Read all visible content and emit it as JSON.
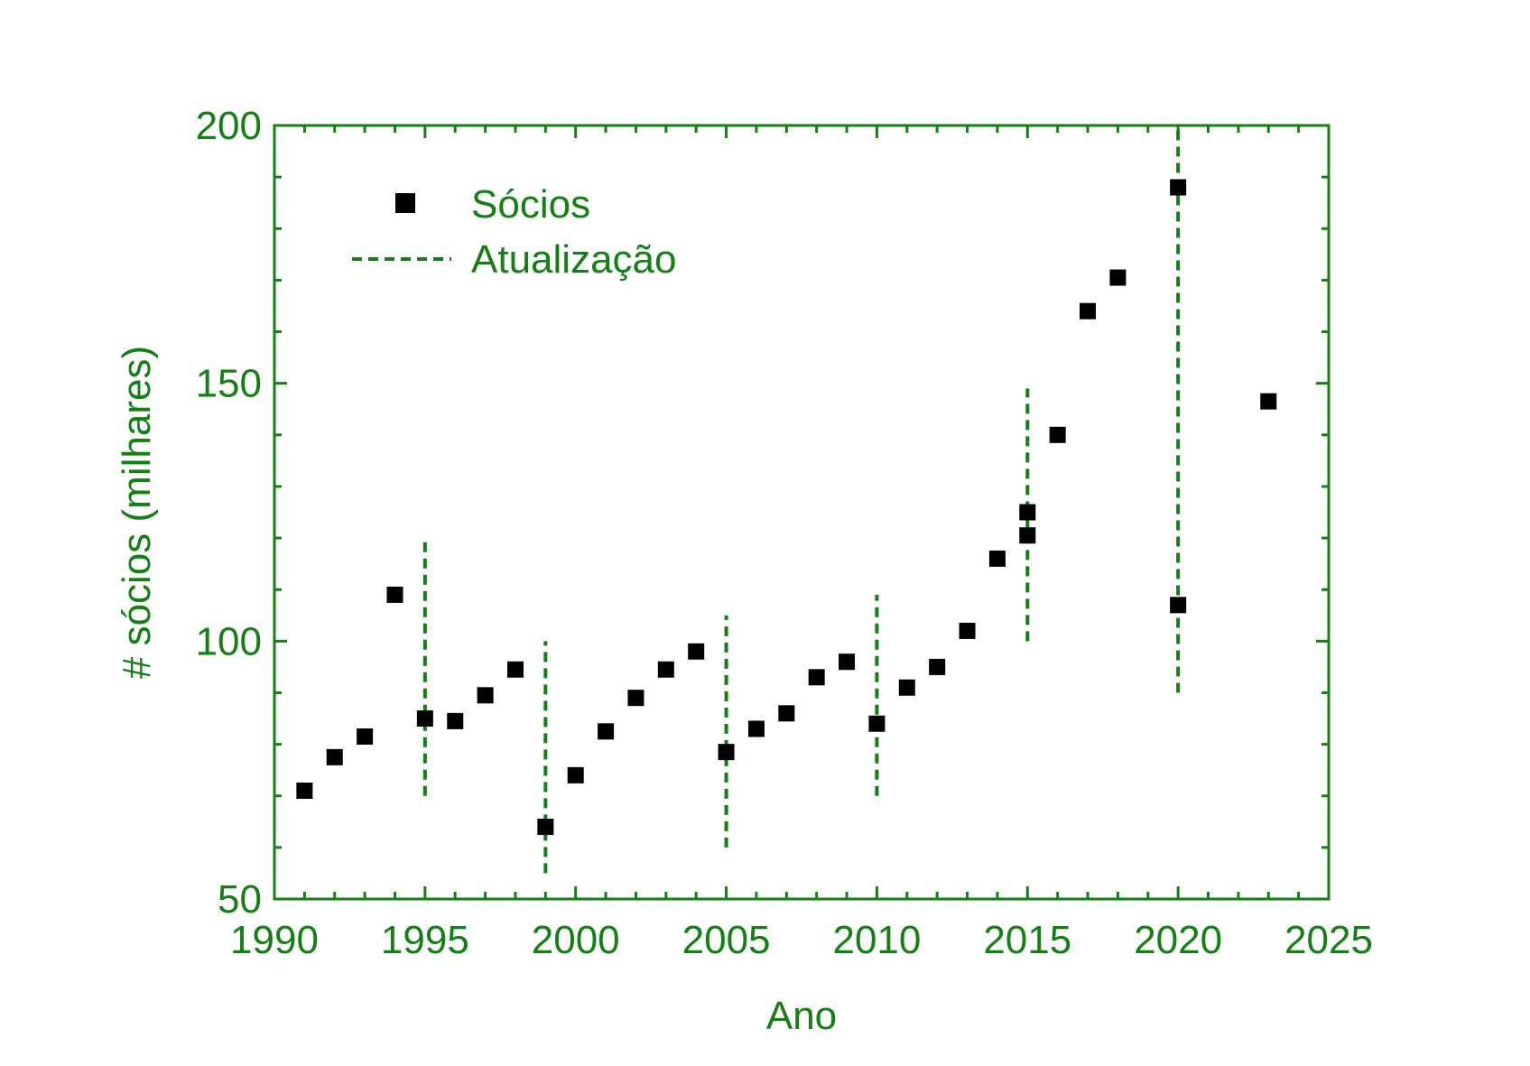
{
  "chart_data": {
    "type": "scatter",
    "title": "",
    "xlabel": "Ano",
    "ylabel": "# sócios (milhares)",
    "xlim": [
      1990,
      2025
    ],
    "ylim": [
      50,
      200
    ],
    "x_ticks": [
      1990,
      1995,
      2000,
      2005,
      2010,
      2015,
      2020,
      2025
    ],
    "y_ticks": [
      50,
      100,
      150,
      200
    ],
    "x_minor_step": 1,
    "y_minor_step": 10,
    "grid": false,
    "legend_position": "top-left",
    "colors": {
      "axis": "#138013",
      "marker": "#000000",
      "update_line": "#138013"
    },
    "series": [
      {
        "name": "Sócios",
        "kind": "scatter",
        "marker": "square",
        "points": [
          {
            "x": 1991,
            "y": 71
          },
          {
            "x": 1992,
            "y": 77.5
          },
          {
            "x": 1993,
            "y": 81.5
          },
          {
            "x": 1994,
            "y": 109
          },
          {
            "x": 1995,
            "y": 85
          },
          {
            "x": 1996,
            "y": 84.5
          },
          {
            "x": 1997,
            "y": 89.5
          },
          {
            "x": 1998,
            "y": 94.5
          },
          {
            "x": 1999,
            "y": 64
          },
          {
            "x": 2000,
            "y": 74
          },
          {
            "x": 2001,
            "y": 82.5
          },
          {
            "x": 2002,
            "y": 89
          },
          {
            "x": 2003,
            "y": 94.5
          },
          {
            "x": 2004,
            "y": 98
          },
          {
            "x": 2005,
            "y": 78.5
          },
          {
            "x": 2006,
            "y": 83
          },
          {
            "x": 2007,
            "y": 86
          },
          {
            "x": 2008,
            "y": 93
          },
          {
            "x": 2009,
            "y": 96
          },
          {
            "x": 2010,
            "y": 84
          },
          {
            "x": 2011,
            "y": 91
          },
          {
            "x": 2012,
            "y": 95
          },
          {
            "x": 2013,
            "y": 102
          },
          {
            "x": 2014,
            "y": 116
          },
          {
            "x": 2015,
            "y": 120.5
          },
          {
            "x": 2015,
            "y": 125
          },
          {
            "x": 2016,
            "y": 140
          },
          {
            "x": 2017,
            "y": 164
          },
          {
            "x": 2018,
            "y": 170.5
          },
          {
            "x": 2020,
            "y": 107
          },
          {
            "x": 2020,
            "y": 188
          },
          {
            "x": 2023,
            "y": 146.5
          }
        ]
      },
      {
        "name": "Atualização",
        "kind": "vertical-dashed-segments",
        "segments": [
          {
            "x": 1995,
            "y0": 70,
            "y1": 120
          },
          {
            "x": 1999,
            "y0": 55,
            "y1": 100
          },
          {
            "x": 2005,
            "y0": 60,
            "y1": 105
          },
          {
            "x": 2010,
            "y0": 70,
            "y1": 109
          },
          {
            "x": 2015,
            "y0": 100,
            "y1": 149
          },
          {
            "x": 2020,
            "y0": 90,
            "y1": 200
          }
        ]
      }
    ]
  }
}
